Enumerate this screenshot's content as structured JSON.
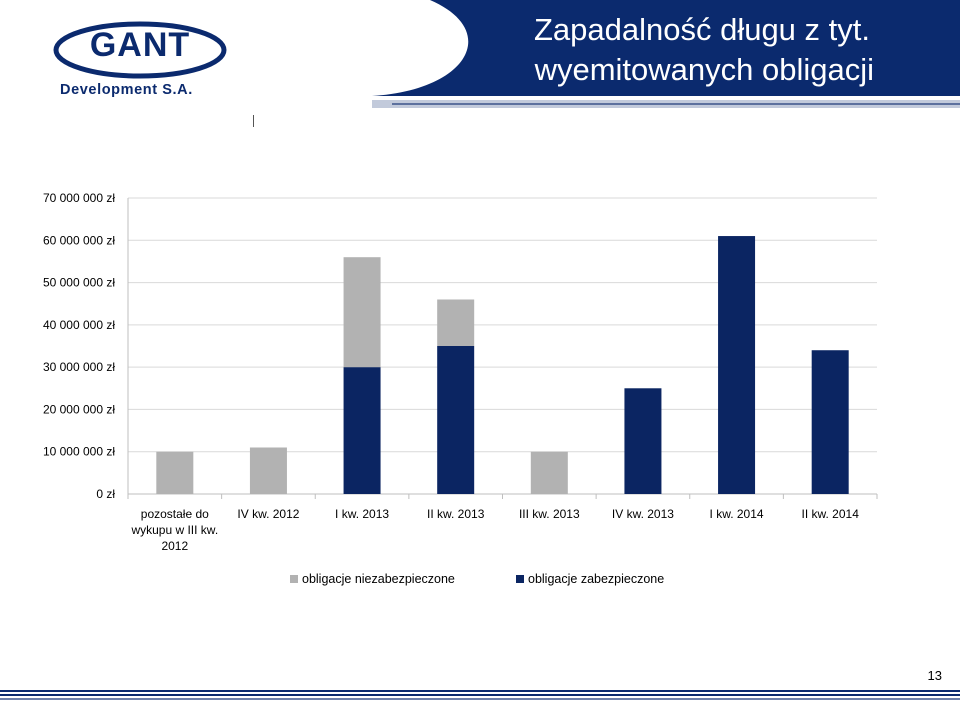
{
  "header": {
    "title_line1": "Zapadalność długu z tyt.",
    "title_line2": "wyemitowanych obligacji",
    "banner_color": "#0b2a6e"
  },
  "logo": {
    "word": "GANT",
    "subtitle": "Development S.A.",
    "color": "#0b2a6e"
  },
  "page_number": "13",
  "colors": {
    "unsecured": "#b2b2b2",
    "secured": "#0b2562",
    "grid": "#d9d9d9"
  },
  "chart_data": {
    "type": "bar",
    "stacked": true,
    "categories": [
      "pozostałe do wykupu w III kw. 2012",
      "IV kw. 2012",
      "I kw. 2013",
      "II kw. 2013",
      "III kw. 2013",
      "IV kw. 2013",
      "I kw. 2014",
      "II kw. 2014"
    ],
    "category_label_lines": [
      [
        "pozostałe do",
        "wykupu w III kw.",
        "2012"
      ],
      [
        "IV kw. 2012"
      ],
      [
        "I kw. 2013"
      ],
      [
        "II kw. 2013"
      ],
      [
        "III kw. 2013"
      ],
      [
        "IV kw. 2013"
      ],
      [
        "I kw. 2014"
      ],
      [
        "II kw. 2014"
      ]
    ],
    "series": [
      {
        "name": "obligacje zabezpieczone",
        "values": [
          0,
          0,
          30000000,
          35000000,
          0,
          25000000,
          61000000,
          34000000
        ]
      },
      {
        "name": "obligacje niezabezpieczone",
        "values": [
          10000000,
          11000000,
          26000000,
          11000000,
          10000000,
          0,
          0,
          0
        ]
      }
    ],
    "yticks": [
      0,
      10000000,
      20000000,
      30000000,
      40000000,
      50000000,
      60000000,
      70000000
    ],
    "ytick_labels": [
      "0 zł",
      "10 000 000 zł",
      "20 000 000 zł",
      "30 000 000 zł",
      "40 000 000 zł",
      "50 000 000 zł",
      "60 000 000 zł",
      "70 000 000 zł"
    ],
    "ylim": [
      0,
      70000000
    ],
    "grid": true,
    "legend_position": "bottom",
    "title": "",
    "xlabel": "",
    "ylabel": ""
  },
  "legend": {
    "items": [
      {
        "label": "obligacje niezabezpieczone"
      },
      {
        "label": "obligacje zabezpieczone"
      }
    ]
  }
}
